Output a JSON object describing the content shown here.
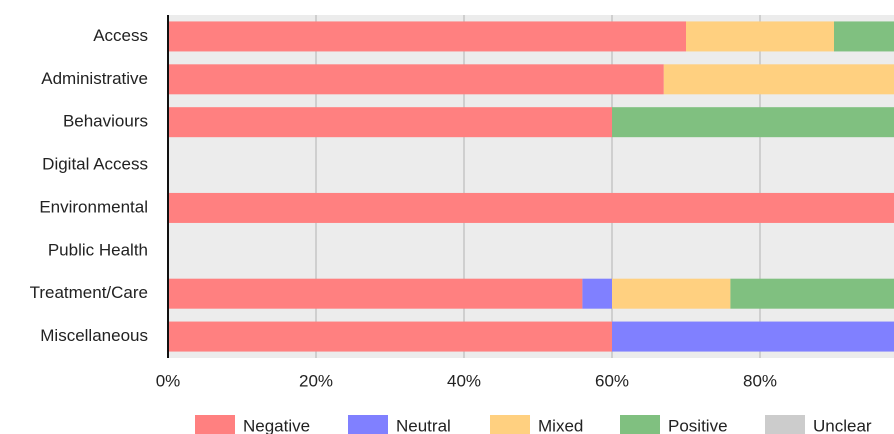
{
  "chart_data": {
    "type": "stacked_bar_horizontal",
    "categories": [
      "Access",
      "Administrative",
      "Behaviours",
      "Digital Access",
      "Environmental",
      "Public Health",
      "Treatment/Care",
      "Miscellaneous"
    ],
    "series": [
      {
        "name": "Negative",
        "color": "#ff8080",
        "values": [
          70,
          67,
          60,
          0,
          100,
          0,
          56,
          60
        ]
      },
      {
        "name": "Neutral",
        "color": "#8080ff",
        "values": [
          0,
          0,
          0,
          0,
          0,
          0,
          4,
          40
        ]
      },
      {
        "name": "Mixed",
        "color": "#ffd080",
        "values": [
          20,
          33,
          0,
          0,
          0,
          0,
          16,
          0
        ]
      },
      {
        "name": "Positive",
        "color": "#80c080",
        "values": [
          10,
          0,
          40,
          0,
          0,
          0,
          24,
          0
        ]
      },
      {
        "name": "Unclear",
        "color": "#cccccc",
        "values": [
          0,
          0,
          0,
          0,
          0,
          0,
          0,
          0
        ]
      }
    ],
    "xlim": [
      0,
      100
    ],
    "xticks": [
      {
        "value": 0,
        "label": "0%"
      },
      {
        "value": 20,
        "label": "20%"
      },
      {
        "value": 40,
        "label": "40%"
      },
      {
        "value": 60,
        "label": "60%"
      },
      {
        "value": 80,
        "label": "80%"
      }
    ],
    "grid": true,
    "legend": "bottom"
  }
}
